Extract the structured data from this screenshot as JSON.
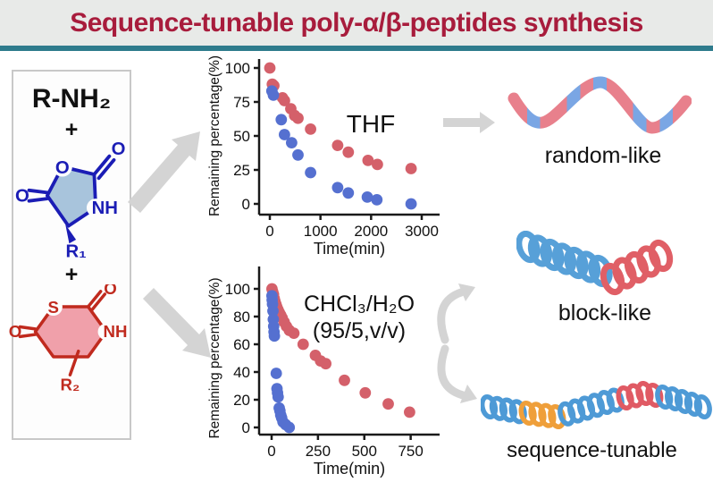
{
  "title": "Sequence-tunable poly-α/β-peptides synthesis",
  "colors": {
    "title_text": "#A81C3C",
    "title_bg": "#E8EAE8",
    "accent_line": "#2E7B8C",
    "arrow_gray": "#D4D4D4",
    "axis": "#1a1a1a",
    "chem_blue": "#1B1DB5",
    "chem_blue_fill": "#A8C4DC",
    "chem_red": "#C02A1E",
    "chem_red_fill": "#F0A0AA",
    "scatter_red": "#D4606A",
    "scatter_blue": "#5570D0"
  },
  "reactants": {
    "amine": "R-NH₂",
    "plus": "+",
    "nca": {
      "ring_o": "O",
      "top_o": "O",
      "left_o": "O",
      "nh": "NH",
      "r1": "R₁"
    },
    "thiolactone": {
      "s": "S",
      "top_o": "O",
      "left_o": "O",
      "nh": "NH",
      "r2": "R₂"
    }
  },
  "products": [
    {
      "label": "random-like"
    },
    {
      "label": "block-like"
    },
    {
      "label": "sequence-tunable"
    }
  ],
  "helices": {
    "random": {
      "stripes": [
        "#E8808C",
        "#7AA6E4",
        "#E8808C",
        "#E8808C",
        "#7AA6E4",
        "#E8808C",
        "#7AA6E4",
        "#E8808C",
        "#E8808C",
        "#7AA6E4",
        "#E8808C",
        "#7AA6E4",
        "#E8808C"
      ]
    },
    "block": {
      "segments": [
        {
          "color": "#57A0D8",
          "loops": 7
        },
        {
          "color": "#E05F66",
          "loops": 5
        }
      ]
    },
    "sequence": {
      "segments": [
        {
          "color": "#4E9AD6",
          "loops": 4
        },
        {
          "color": "#EF9F3A",
          "loops": 4
        },
        {
          "color": "#4E9AD6",
          "loops": 6
        },
        {
          "color": "#E05A64",
          "loops": 4
        },
        {
          "color": "#4E9AD6",
          "loops": 5
        }
      ]
    }
  },
  "chart_data": [
    {
      "type": "scatter",
      "annotation": [
        "THF"
      ],
      "xlabel": "Time(min)",
      "ylabel": "Remaining percentage(%)",
      "xlim": [
        0,
        3000
      ],
      "ylim": [
        0,
        100
      ],
      "xticks": [
        0,
        1000,
        2000,
        3000
      ],
      "yticks": [
        0,
        25,
        50,
        75,
        100
      ],
      "grid": false,
      "legend": "none",
      "series": [
        {
          "name": "red",
          "color": "#D4606A",
          "points": [
            [
              0,
              100
            ],
            [
              50,
              88
            ],
            [
              80,
              87
            ],
            [
              250,
              78
            ],
            [
              290,
              76
            ],
            [
              415,
              70
            ],
            [
              490,
              65
            ],
            [
              555,
              63
            ],
            [
              805,
              55
            ],
            [
              1340,
              43
            ],
            [
              1550,
              38
            ],
            [
              1940,
              32
            ],
            [
              2125,
              29
            ],
            [
              2790,
              26
            ]
          ]
        },
        {
          "name": "blue",
          "color": "#5570D0",
          "points": [
            [
              40,
              83
            ],
            [
              70,
              80
            ],
            [
              225,
              62
            ],
            [
              290,
              51
            ],
            [
              430,
              45
            ],
            [
              555,
              36
            ],
            [
              805,
              23
            ],
            [
              1340,
              12
            ],
            [
              1550,
              8
            ],
            [
              1925,
              5
            ],
            [
              2115,
              3
            ],
            [
              2790,
              0
            ]
          ]
        }
      ]
    },
    {
      "type": "scatter",
      "annotation": [
        "CHCl₃/H₂O",
        "(95/5,v/v)"
      ],
      "xlabel": "Time(min)",
      "ylabel": "Remaining percentage(%)",
      "xlim": [
        0,
        800
      ],
      "ylim": [
        0,
        100
      ],
      "xticks": [
        0,
        250,
        500,
        750
      ],
      "yticks": [
        0,
        20,
        40,
        60,
        80,
        100
      ],
      "grid": false,
      "legend": "none",
      "series": [
        {
          "name": "red",
          "color": "#D4606A",
          "points": [
            [
              2,
              100
            ],
            [
              6,
              98
            ],
            [
              10,
              96
            ],
            [
              14,
              93
            ],
            [
              18,
              91
            ],
            [
              23,
              89
            ],
            [
              28,
              87
            ],
            [
              34,
              85
            ],
            [
              41,
              83
            ],
            [
              49,
              81
            ],
            [
              57,
              79
            ],
            [
              68,
              76
            ],
            [
              80,
              73
            ],
            [
              96,
              70
            ],
            [
              120,
              68
            ],
            [
              170,
              60
            ],
            [
              236,
              52
            ],
            [
              264,
              48
            ],
            [
              292,
              46
            ],
            [
              393,
              34
            ],
            [
              505,
              25
            ],
            [
              629,
              17
            ],
            [
              744,
              11
            ]
          ]
        },
        {
          "name": "blue",
          "color": "#5570D0",
          "points": [
            [
              2,
              95
            ],
            [
              3,
              92
            ],
            [
              5,
              89
            ],
            [
              7,
              84
            ],
            [
              9,
              78
            ],
            [
              11,
              73
            ],
            [
              13,
              69
            ],
            [
              15,
              66
            ],
            [
              25,
              39
            ],
            [
              29,
              28
            ],
            [
              32,
              25
            ],
            [
              35,
              22
            ],
            [
              41,
              14
            ],
            [
              45,
              12
            ],
            [
              49,
              9
            ],
            [
              54,
              7
            ],
            [
              61,
              4
            ],
            [
              76,
              2
            ],
            [
              95,
              0
            ]
          ]
        }
      ]
    }
  ]
}
